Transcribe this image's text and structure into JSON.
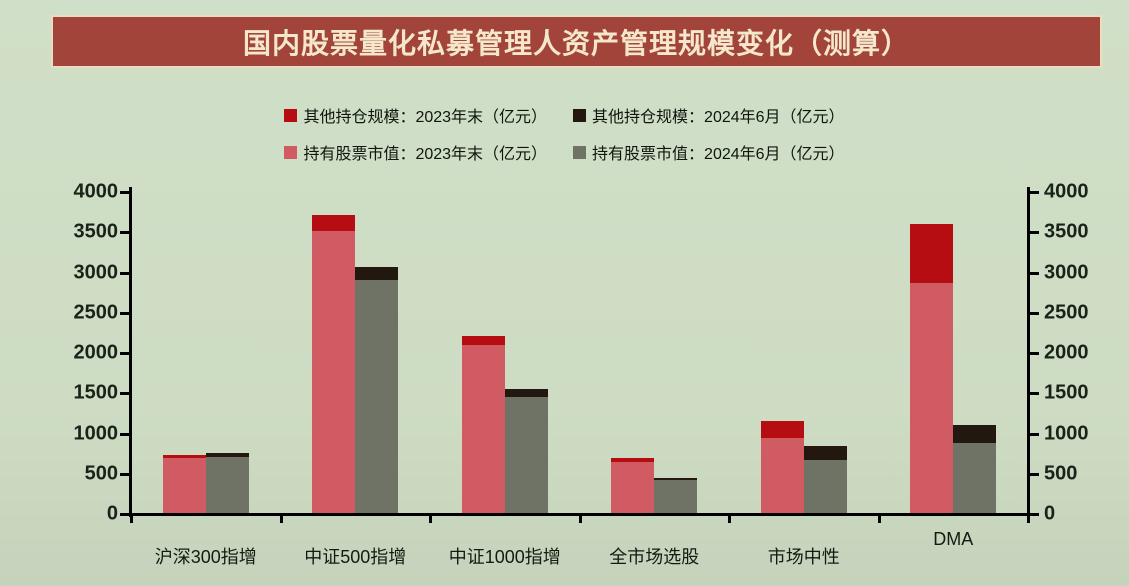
{
  "title": "国内股票量化私募管理人资产管理规模变化（测算）",
  "colors": {
    "background": "#cddcc3",
    "title_bar_fill": "#a24439",
    "title_bar_border": "#e9dcc0",
    "title_text": "#f4e7cb",
    "axis": "#000000",
    "tick_text": "#1a231a",
    "series_other_2023": "#b60d12",
    "series_other_2024": "#22180f",
    "series_stock_2023": "#d05b63",
    "series_stock_2024": "#6e7366"
  },
  "legend": {
    "rows": [
      {
        "items": [
          {
            "label": "其他持仓规模：2023年末（亿元）",
            "color": "#b60d12"
          },
          {
            "label": "其他持仓规模：2024年6月（亿元）",
            "color": "#22180f"
          }
        ]
      },
      {
        "items": [
          {
            "label": "持有股票市值：2023年末（亿元）",
            "color": "#d05b63"
          },
          {
            "label": "持有股票市值：2024年6月（亿元）",
            "color": "#6e7366"
          }
        ]
      }
    ]
  },
  "chart_data": {
    "type": "bar",
    "layout": "two stacked bars per category (2023年末 and 2024年6月), dual mirrored y-axes, no gridlines",
    "title": "国内股票量化私募管理人资产管理规模变化（测算）",
    "unit": "亿元",
    "categories": [
      "沪深300指增",
      "中证500指增",
      "中证1000指增",
      "全市场选股",
      "市场中性",
      "DMA"
    ],
    "series": [
      {
        "name": "持有股票市值：2023年末（亿元）",
        "group": "2023",
        "stack_order": 0,
        "color": "#d05b63",
        "values": [
          700,
          3520,
          2100,
          650,
          940,
          2870
        ]
      },
      {
        "name": "其他持仓规模：2023年末（亿元）",
        "group": "2023",
        "stack_order": 1,
        "color": "#b60d12",
        "values": [
          30,
          190,
          110,
          50,
          215,
          730
        ]
      },
      {
        "name": "持有股票市值：2024年6月（亿元）",
        "group": "2024",
        "stack_order": 0,
        "color": "#6e7366",
        "values": [
          710,
          2910,
          1450,
          420,
          670,
          880
        ]
      },
      {
        "name": "其他持仓规模：2024年6月（亿元）",
        "group": "2024",
        "stack_order": 1,
        "color": "#22180f",
        "values": [
          45,
          160,
          100,
          25,
          170,
          220
        ]
      }
    ],
    "stack_totals": {
      "2023年末": [
        730,
        3710,
        2210,
        700,
        1155,
        3600
      ],
      "2024年6月": [
        755,
        3070,
        1550,
        445,
        840,
        1100
      ]
    },
    "ylim": [
      0,
      4000
    ],
    "yticks": [
      0,
      500,
      1000,
      1500,
      2000,
      2500,
      3000,
      3500,
      4000
    ],
    "grid": false,
    "legend_position": "top"
  }
}
